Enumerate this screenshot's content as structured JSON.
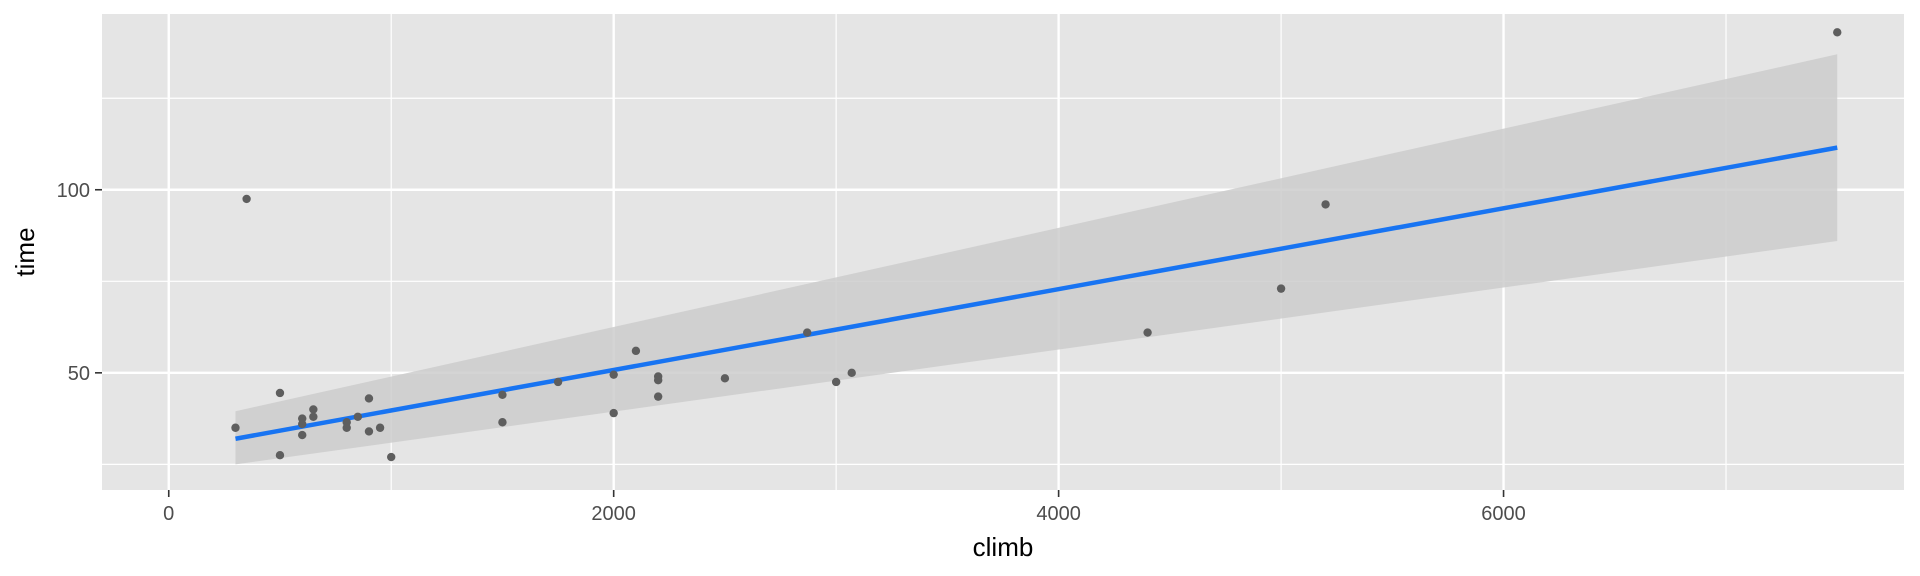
{
  "chart_data": {
    "type": "scatter",
    "xlabel": "climb",
    "ylabel": "time",
    "xlim": [
      -300,
      7800
    ],
    "ylim": [
      18,
      148
    ],
    "x_ticks": [
      0,
      2000,
      4000,
      6000
    ],
    "x_tick_labels": [
      "0",
      "2000",
      "4000",
      "6000"
    ],
    "y_ticks": [
      50,
      100
    ],
    "y_tick_labels": [
      "50",
      "100"
    ],
    "grid": true,
    "points": [
      {
        "x": 300,
        "y": 35
      },
      {
        "x": 350,
        "y": 97.5
      },
      {
        "x": 500,
        "y": 44.5
      },
      {
        "x": 500,
        "y": 27.5
      },
      {
        "x": 600,
        "y": 37.5
      },
      {
        "x": 600,
        "y": 36
      },
      {
        "x": 600,
        "y": 33
      },
      {
        "x": 650,
        "y": 40
      },
      {
        "x": 650,
        "y": 38
      },
      {
        "x": 800,
        "y": 36.5
      },
      {
        "x": 800,
        "y": 35
      },
      {
        "x": 850,
        "y": 38
      },
      {
        "x": 900,
        "y": 43
      },
      {
        "x": 900,
        "y": 34
      },
      {
        "x": 950,
        "y": 35
      },
      {
        "x": 1000,
        "y": 27
      },
      {
        "x": 1500,
        "y": 44
      },
      {
        "x": 1500,
        "y": 36.5
      },
      {
        "x": 1750,
        "y": 47.5
      },
      {
        "x": 2000,
        "y": 49.5
      },
      {
        "x": 2000,
        "y": 39
      },
      {
        "x": 2100,
        "y": 56
      },
      {
        "x": 2200,
        "y": 49
      },
      {
        "x": 2200,
        "y": 48
      },
      {
        "x": 2200,
        "y": 43.5
      },
      {
        "x": 2500,
        "y": 48.5
      },
      {
        "x": 2870,
        "y": 61
      },
      {
        "x": 3000,
        "y": 47.5
      },
      {
        "x": 3070,
        "y": 50
      },
      {
        "x": 4400,
        "y": 61
      },
      {
        "x": 5000,
        "y": 73
      },
      {
        "x": 5200,
        "y": 96
      },
      {
        "x": 7500,
        "y": 143
      }
    ],
    "fit": {
      "x": [
        300,
        7500
      ],
      "y": [
        32,
        111.5
      ],
      "lower": [
        25,
        86
      ],
      "upper": [
        39.5,
        137
      ]
    },
    "colors": {
      "panel": "#e5e5e5",
      "grid_major": "#ffffff",
      "points": "#5e5e5e",
      "fit_line": "#1874f2",
      "ribbon": "#cccccc"
    }
  }
}
